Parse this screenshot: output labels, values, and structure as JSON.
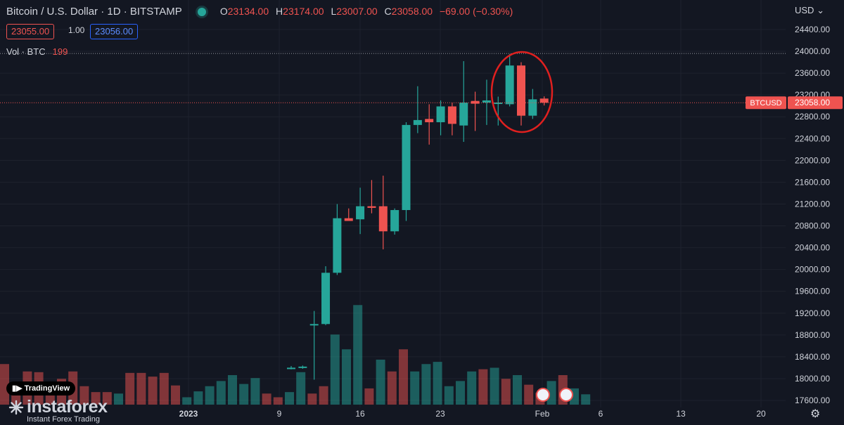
{
  "header": {
    "title": "Bitcoin / U.S. Dollar · 1D · BITSTAMP",
    "o_label": "O",
    "o_value": "23134.00",
    "h_label": "H",
    "h_value": "23174.00",
    "l_label": "L",
    "l_value": "23007.00",
    "c_label": "C",
    "c_value": "23058.00",
    "change": "−69.00 (−0.30%)"
  },
  "trade": {
    "sell_price": "23055.00",
    "spread": "1.00",
    "buy_price": "23056.00"
  },
  "volume_legend": {
    "label": "Vol · BTC",
    "value": "199"
  },
  "currency_menu": "USD",
  "branding": {
    "tradingview": "TradingView",
    "instaforex": "instaforex",
    "instaforex_tagline": "Instant Forex Trading"
  },
  "colors": {
    "up": "#26a69a",
    "down": "#ef5350",
    "background": "#131722",
    "annotation": "#e0201f"
  },
  "chart_data": {
    "type": "candlestick",
    "symbol_tag": "BTCUSD",
    "last_price_label": "23058.00",
    "last_price": 23058,
    "x_tick_labels": [
      "2023",
      "9",
      "16",
      "23",
      "Feb",
      "6",
      "13",
      "20"
    ],
    "y_tick_labels": [
      "24400.00",
      "24000.00",
      "23600.00",
      "23200.00",
      "22800.00",
      "22400.00",
      "22000.00",
      "21600.00",
      "21200.00",
      "20800.00",
      "20400.00",
      "20000.00",
      "19600.00",
      "19200.00",
      "18800.00",
      "18400.00",
      "18000.00",
      "17600.00"
    ],
    "ylim": [
      17480,
      24600
    ],
    "dotted_level": 23960,
    "annotation": "red ellipse around the final candles near the high",
    "candles": [
      {
        "o": 18190,
        "h": 18230,
        "l": 18170,
        "c": 18200
      },
      {
        "o": 18210,
        "h": 18240,
        "l": 18180,
        "c": 18220
      },
      {
        "o": 19000,
        "h": 19240,
        "l": 17980,
        "c": 19000
      },
      {
        "o": 19000,
        "h": 20060,
        "l": 18980,
        "c": 19940
      },
      {
        "o": 19940,
        "h": 21200,
        "l": 19900,
        "c": 20940
      },
      {
        "o": 20940,
        "h": 21120,
        "l": 20900,
        "c": 20890
      },
      {
        "o": 20920,
        "h": 21500,
        "l": 20650,
        "c": 21160
      },
      {
        "o": 21160,
        "h": 21640,
        "l": 21030,
        "c": 21130
      },
      {
        "o": 21160,
        "h": 21720,
        "l": 20370,
        "c": 20700
      },
      {
        "o": 20700,
        "h": 21120,
        "l": 20640,
        "c": 21090
      },
      {
        "o": 21090,
        "h": 22700,
        "l": 20890,
        "c": 22650
      },
      {
        "o": 22650,
        "h": 23360,
        "l": 22500,
        "c": 22740
      },
      {
        "o": 22760,
        "h": 23030,
        "l": 22290,
        "c": 22700
      },
      {
        "o": 22700,
        "h": 23100,
        "l": 22460,
        "c": 22990
      },
      {
        "o": 22990,
        "h": 23060,
        "l": 22460,
        "c": 22670
      },
      {
        "o": 22640,
        "h": 23820,
        "l": 22340,
        "c": 23060
      },
      {
        "o": 23090,
        "h": 23260,
        "l": 22540,
        "c": 23040
      },
      {
        "o": 23060,
        "h": 23480,
        "l": 22650,
        "c": 23100
      },
      {
        "o": 23060,
        "h": 23170,
        "l": 22640,
        "c": 23060
      },
      {
        "o": 23030,
        "h": 23950,
        "l": 22990,
        "c": 23740
      },
      {
        "o": 23740,
        "h": 23800,
        "l": 22640,
        "c": 22820
      },
      {
        "o": 22820,
        "h": 23310,
        "l": 22760,
        "c": 23120
      },
      {
        "o": 23134,
        "h": 23174,
        "l": 23007,
        "c": 23058
      }
    ],
    "volume": {
      "bars": [
        {
          "v": 55,
          "d": 1
        },
        {
          "v": 25,
          "d": 1
        },
        {
          "v": 45,
          "d": 1
        },
        {
          "v": 44,
          "d": 1
        },
        {
          "v": 25,
          "d": 1
        },
        {
          "v": 35,
          "d": 1
        },
        {
          "v": 45,
          "d": 1
        },
        {
          "v": 25,
          "d": 1
        },
        {
          "v": 17,
          "d": 1
        },
        {
          "v": 17,
          "d": 1
        },
        {
          "v": 15,
          "d": 0
        },
        {
          "v": 43,
          "d": 1
        },
        {
          "v": 43,
          "d": 1
        },
        {
          "v": 38,
          "d": 1
        },
        {
          "v": 43,
          "d": 1
        },
        {
          "v": 26,
          "d": 1
        },
        {
          "v": 10,
          "d": 0
        },
        {
          "v": 18,
          "d": 0
        },
        {
          "v": 25,
          "d": 0
        },
        {
          "v": 32,
          "d": 0
        },
        {
          "v": 40,
          "d": 0
        },
        {
          "v": 28,
          "d": 0
        },
        {
          "v": 36,
          "d": 0
        },
        {
          "v": 15,
          "d": 1
        },
        {
          "v": 10,
          "d": 1
        },
        {
          "v": 17,
          "d": 0
        },
        {
          "v": 44,
          "d": 0
        },
        {
          "v": 15,
          "d": 1
        },
        {
          "v": 25,
          "d": 1
        },
        {
          "v": 95,
          "d": 0
        },
        {
          "v": 75,
          "d": 0
        },
        {
          "v": 135,
          "d": 0
        },
        {
          "v": 22,
          "d": 1
        },
        {
          "v": 61,
          "d": 0
        },
        {
          "v": 45,
          "d": 1
        },
        {
          "v": 75,
          "d": 1
        },
        {
          "v": 45,
          "d": 0
        },
        {
          "v": 55,
          "d": 0
        },
        {
          "v": 58,
          "d": 0
        },
        {
          "v": 25,
          "d": 0
        },
        {
          "v": 32,
          "d": 0
        },
        {
          "v": 45,
          "d": 0
        },
        {
          "v": 48,
          "d": 1
        },
        {
          "v": 50,
          "d": 0
        },
        {
          "v": 35,
          "d": 1
        },
        {
          "v": 40,
          "d": 0
        },
        {
          "v": 27,
          "d": 1
        },
        {
          "v": 16,
          "d": 1
        },
        {
          "v": 32,
          "d": 0
        },
        {
          "v": 40,
          "d": 1
        },
        {
          "v": 22,
          "d": 0
        },
        {
          "v": 14,
          "d": 0
        }
      ]
    }
  }
}
